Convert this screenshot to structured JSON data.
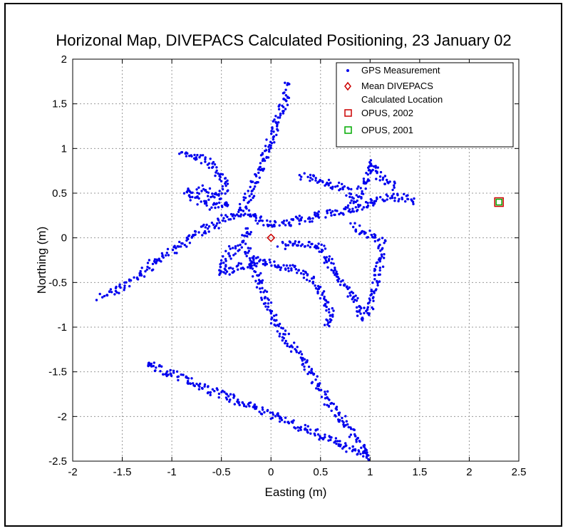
{
  "chart_data": {
    "type": "scatter",
    "title": "Horizonal Map, DIVEPACS Calculated Positioning, 23 January 02",
    "xlabel": "Easting (m)",
    "ylabel": "Northing (m)",
    "xlim": [
      -2,
      2.5
    ],
    "ylim": [
      -2.5,
      2
    ],
    "xticks": [
      -2,
      -1.5,
      -1,
      -0.5,
      0,
      0.5,
      1,
      1.5,
      2,
      2.5
    ],
    "yticks": [
      -2.5,
      -2,
      -1.5,
      -1,
      -0.5,
      0,
      0.5,
      1,
      1.5,
      2
    ],
    "xtick_labels": [
      "-2",
      "-1.5",
      "-1",
      "-0.5",
      "0",
      "0.5",
      "1",
      "1.5",
      "2",
      "2.5"
    ],
    "ytick_labels": [
      "-2.5",
      "-2",
      "-1.5",
      "-1",
      "-0.5",
      "0",
      "0.5",
      "1",
      "1.5",
      "2"
    ],
    "grid": true,
    "legend_position": "top-right",
    "series": [
      {
        "name": "GPS Measurement",
        "marker": "dot",
        "color": "#0000ee",
        "path_points": [
          [
            -1.72,
            -0.66
          ],
          [
            -1.5,
            -0.55
          ],
          [
            -1.3,
            -0.4
          ],
          [
            -1.15,
            -0.25
          ],
          [
            -0.95,
            -0.1
          ],
          [
            -0.75,
            0.05
          ],
          [
            -0.55,
            0.15
          ],
          [
            -0.4,
            0.25
          ],
          [
            -0.3,
            0.3
          ],
          [
            -0.2,
            0.25
          ],
          [
            -0.05,
            0.15
          ],
          [
            0.1,
            0.15
          ],
          [
            0.3,
            0.2
          ],
          [
            0.5,
            0.25
          ],
          [
            0.7,
            0.3
          ],
          [
            0.95,
            0.35
          ],
          [
            1.15,
            0.45
          ],
          [
            1.35,
            0.45
          ],
          [
            1.45,
            0.4
          ],
          [
            -0.9,
            0.95
          ],
          [
            -0.7,
            0.9
          ],
          [
            -0.55,
            0.75
          ],
          [
            -0.45,
            0.6
          ],
          [
            -0.5,
            0.45
          ],
          [
            -0.7,
            0.55
          ],
          [
            -0.85,
            0.5
          ],
          [
            -0.6,
            0.35
          ],
          [
            -0.4,
            0.4
          ],
          [
            -0.3,
            0.3
          ],
          [
            -0.2,
            0.5
          ],
          [
            -0.1,
            0.8
          ],
          [
            0.0,
            1.1
          ],
          [
            0.1,
            1.4
          ],
          [
            0.18,
            1.72
          ],
          [
            0.3,
            0.7
          ],
          [
            0.45,
            0.65
          ],
          [
            0.6,
            0.6
          ],
          [
            0.75,
            0.55
          ],
          [
            0.85,
            0.4
          ],
          [
            0.95,
            0.6
          ],
          [
            1.0,
            0.85
          ],
          [
            1.1,
            0.7
          ],
          [
            1.25,
            0.55
          ],
          [
            -0.2,
            0.1
          ],
          [
            -0.3,
            -0.05
          ],
          [
            -0.45,
            -0.2
          ],
          [
            -0.5,
            -0.4
          ],
          [
            -0.35,
            -0.35
          ],
          [
            -0.15,
            -0.25
          ],
          [
            0.05,
            -0.3
          ],
          [
            0.25,
            -0.35
          ],
          [
            0.4,
            -0.45
          ],
          [
            0.5,
            -0.6
          ],
          [
            0.6,
            -0.8
          ],
          [
            0.55,
            -1.0
          ],
          [
            0.1,
            -0.1
          ],
          [
            0.3,
            -0.05
          ],
          [
            0.5,
            -0.1
          ],
          [
            0.6,
            -0.3
          ],
          [
            0.75,
            -0.55
          ],
          [
            0.85,
            -0.7
          ],
          [
            0.9,
            -0.85
          ],
          [
            0.95,
            -0.9
          ],
          [
            1.0,
            -0.75
          ],
          [
            1.05,
            -0.5
          ],
          [
            1.1,
            -0.3
          ],
          [
            1.12,
            -0.05
          ],
          [
            0.95,
            0.05
          ],
          [
            0.8,
            0.15
          ],
          [
            -0.25,
            -0.1
          ],
          [
            -0.15,
            -0.4
          ],
          [
            -0.05,
            -0.7
          ],
          [
            0.05,
            -0.95
          ],
          [
            0.2,
            -1.2
          ],
          [
            0.35,
            -1.4
          ],
          [
            0.5,
            -1.7
          ],
          [
            0.65,
            -1.95
          ],
          [
            0.8,
            -2.15
          ],
          [
            0.9,
            -2.3
          ],
          [
            1.0,
            -2.45
          ],
          [
            -1.22,
            -1.42
          ],
          [
            -1.25,
            -1.45
          ]
        ]
      },
      {
        "name": "Mean DIVEPACS Calculated Location",
        "marker": "diamond",
        "color": "#cc0000",
        "points": [
          [
            0.0,
            0.0
          ]
        ]
      },
      {
        "name": "OPUS, 2002",
        "marker": "square",
        "color": "#cc0000",
        "points": [
          [
            2.3,
            0.4
          ]
        ]
      },
      {
        "name": "OPUS, 2001",
        "marker": "square",
        "color": "#00aa00",
        "points": [
          [
            2.3,
            0.4
          ]
        ]
      }
    ],
    "legend": [
      {
        "label": "GPS Measurement",
        "marker": "dot",
        "color": "#0000ee"
      },
      {
        "label": "Mean DIVEPACS",
        "label2": "Calculated Location",
        "marker": "diamond",
        "color": "#cc0000"
      },
      {
        "label": "OPUS, 2002",
        "marker": "square",
        "color": "#cc0000"
      },
      {
        "label": "OPUS, 2001",
        "marker": "square",
        "color": "#00aa00"
      }
    ]
  }
}
